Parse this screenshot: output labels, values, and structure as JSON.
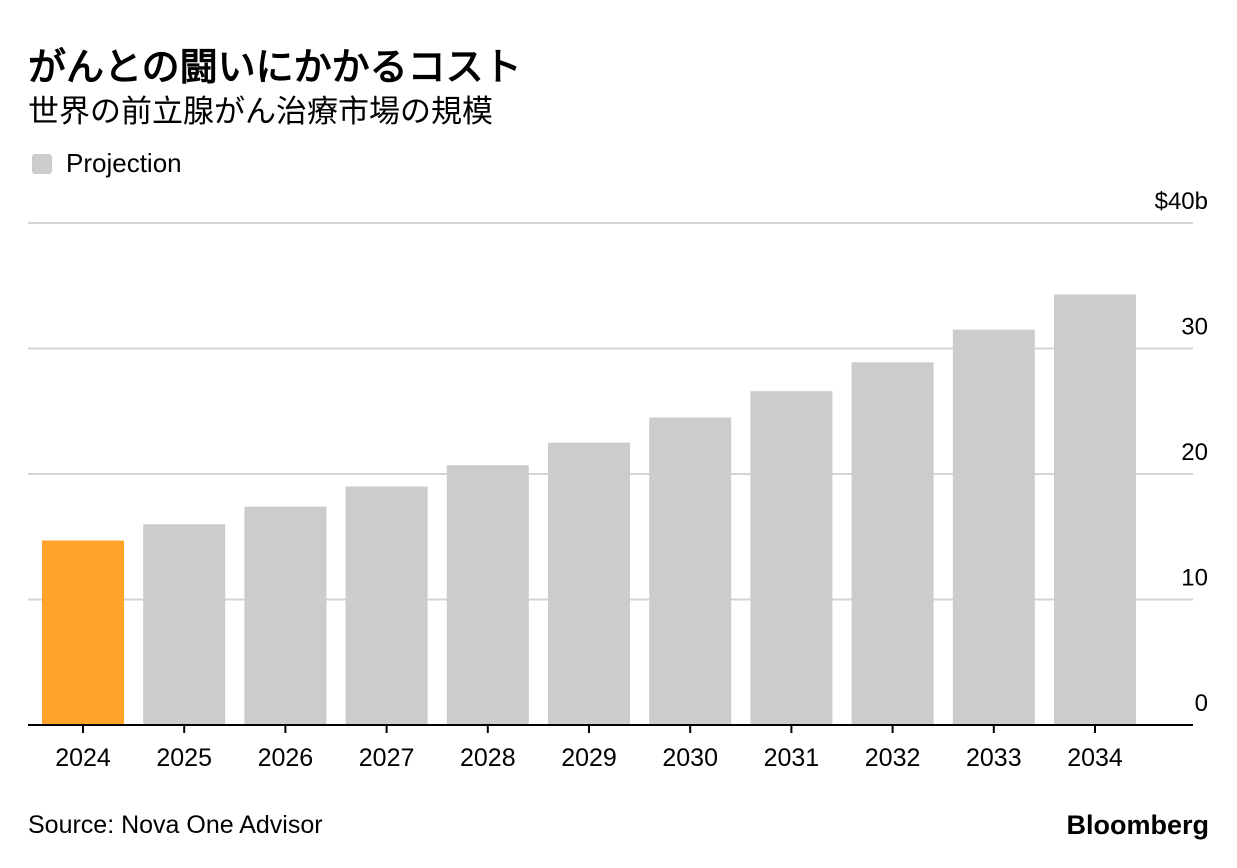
{
  "chart_data": {
    "type": "bar",
    "title": "がんとの闘いにかかるコスト",
    "subtitle": "世界の前立腺がん治療市場の規模",
    "legend": [
      {
        "label": "Projection",
        "color": "#cccccc"
      }
    ],
    "categories": [
      "2024",
      "2025",
      "2026",
      "2027",
      "2028",
      "2029",
      "2030",
      "2031",
      "2032",
      "2033",
      "2034"
    ],
    "values": [
      14.7,
      16.0,
      17.4,
      19.0,
      20.7,
      22.5,
      24.5,
      26.6,
      28.9,
      31.5,
      34.3
    ],
    "bar_colors": [
      "#ffa32b",
      "#cccccc",
      "#cccccc",
      "#cccccc",
      "#cccccc",
      "#cccccc",
      "#cccccc",
      "#cccccc",
      "#cccccc",
      "#cccccc",
      "#cccccc"
    ],
    "ylim": [
      0,
      40
    ],
    "y_ticks": [
      0,
      10,
      20,
      30,
      40
    ],
    "y_tick_labels": [
      "0",
      "10",
      "20",
      "30",
      "$40b"
    ],
    "y_axis_position": "right",
    "grid": true,
    "xlabel": "",
    "ylabel": ""
  },
  "footer": {
    "source": "Source: Nova One Advisor",
    "brand": "Bloomberg"
  }
}
